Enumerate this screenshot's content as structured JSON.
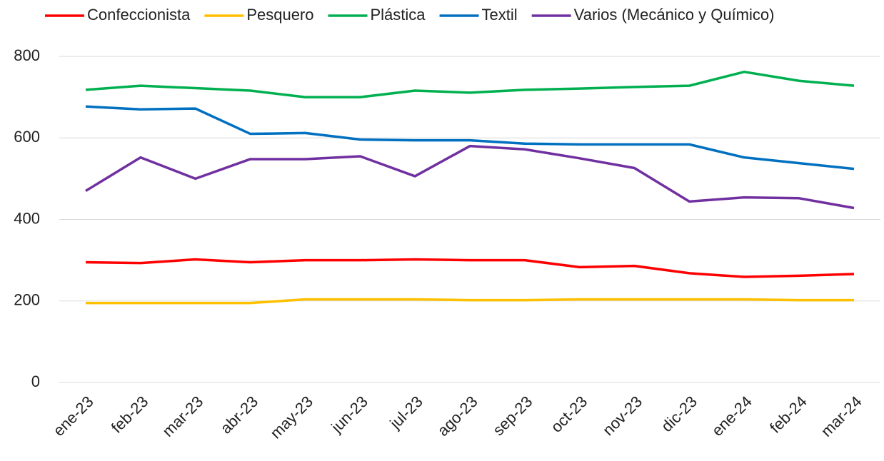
{
  "chart_data": {
    "type": "line",
    "categories": [
      "ene-23",
      "feb-23",
      "mar-23",
      "abr-23",
      "may-23",
      "jun-23",
      "jul-23",
      "ago-23",
      "sep-23",
      "oct-23",
      "nov-23",
      "dic-23",
      "ene-24",
      "feb-24",
      "mar-24"
    ],
    "series": [
      {
        "name": "Confeccionista",
        "color": "#ff0000",
        "values": [
          295,
          293,
          302,
          295,
          300,
          300,
          302,
          300,
          300,
          283,
          286,
          268,
          259,
          262,
          266
        ]
      },
      {
        "name": "Pesquero",
        "color": "#ffc000",
        "values": [
          195,
          195,
          195,
          195,
          204,
          204,
          204,
          202,
          202,
          204,
          204,
          204,
          204,
          202,
          202
        ]
      },
      {
        "name": "Plástica",
        "color": "#00b050",
        "values": [
          718,
          728,
          722,
          716,
          700,
          700,
          716,
          711,
          718,
          721,
          725,
          728,
          762,
          740,
          728
        ]
      },
      {
        "name": "Textil",
        "color": "#0070c0",
        "values": [
          677,
          670,
          672,
          610,
          612,
          596,
          594,
          594,
          586,
          584,
          584,
          584,
          552,
          538,
          524
        ]
      },
      {
        "name": "Varios (Mecánico y Químico)",
        "color": "#7030a0",
        "values": [
          470,
          552,
          500,
          548,
          548,
          555,
          506,
          580,
          572,
          550,
          526,
          444,
          454,
          452,
          428
        ]
      }
    ],
    "ylim": [
      0,
      800
    ],
    "yticks": [
      0,
      200,
      400,
      600,
      800
    ],
    "grid": true,
    "legend": "top"
  }
}
